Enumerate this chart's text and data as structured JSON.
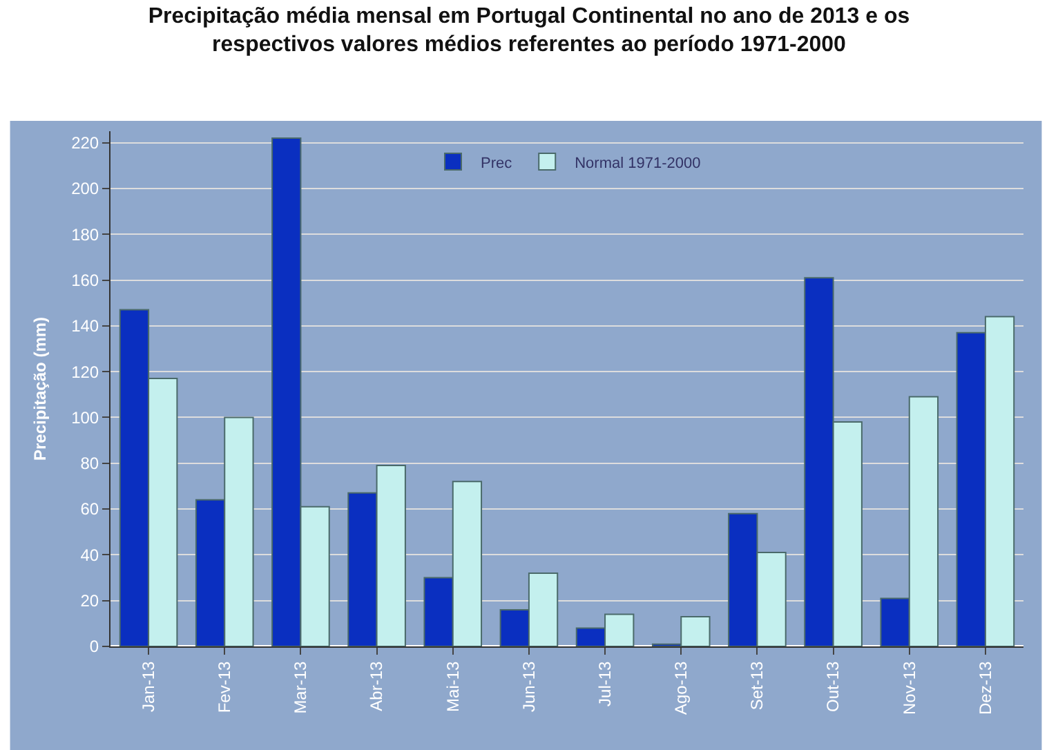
{
  "chart_data": {
    "type": "bar",
    "title": "Precipitação média mensal em Portugal Continental no ano de 2013 e os respectivos valores médios referentes ao período 1971-2000",
    "ylabel": "Precipitação (mm)",
    "categories": [
      "Jan-13",
      "Fev-13",
      "Mar-13",
      "Abr-13",
      "Mai-13",
      "Jun-13",
      "Jul-13",
      "Ago-13",
      "Set-13",
      "Out-13",
      "Nov-13",
      "Dez-13"
    ],
    "series": [
      {
        "name": "Prec",
        "color": "#0a2fc0",
        "values": [
          147,
          64,
          222,
          67,
          30,
          16,
          8,
          1,
          58,
          161,
          21,
          137
        ]
      },
      {
        "name": "Normal 1971-2000",
        "color": "#c4f0ee",
        "values": [
          117,
          100,
          61,
          79,
          72,
          32,
          14,
          13,
          41,
          98,
          109,
          144
        ]
      }
    ],
    "ylim": [
      0,
      225
    ],
    "yticks": [
      0,
      20,
      40,
      60,
      80,
      100,
      120,
      140,
      160,
      180,
      200,
      220
    ],
    "grid": "y",
    "legend": "top"
  }
}
